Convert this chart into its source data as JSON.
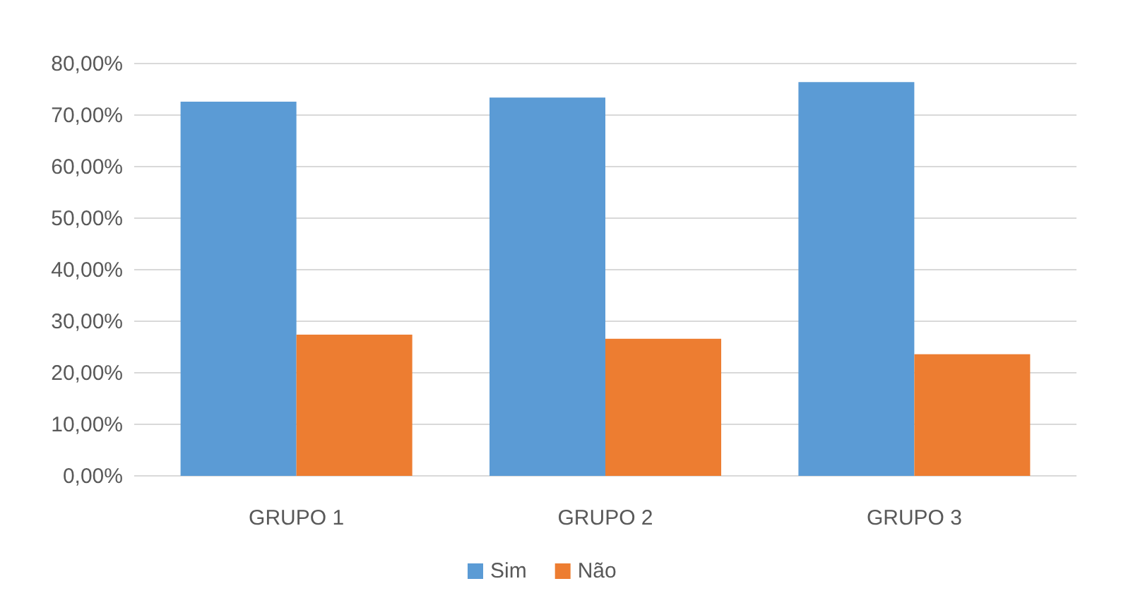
{
  "chart_data": {
    "type": "bar",
    "categories": [
      "GRUPO 1",
      "GRUPO 2",
      "GRUPO 3"
    ],
    "series": [
      {
        "name": "Sim",
        "color": "#5b9bd5",
        "values": [
          72.6,
          73.4,
          76.4
        ]
      },
      {
        "name": "Não",
        "color": "#ed7d31",
        "values": [
          27.4,
          26.6,
          23.6
        ]
      }
    ],
    "ylim": [
      0,
      80
    ],
    "yticks": [
      {
        "value": 0,
        "label": "0,00%"
      },
      {
        "value": 10,
        "label": "10,00%"
      },
      {
        "value": 20,
        "label": "20,00%"
      },
      {
        "value": 30,
        "label": "30,00%"
      },
      {
        "value": 40,
        "label": "40,00%"
      },
      {
        "value": 50,
        "label": "50,00%"
      },
      {
        "value": 60,
        "label": "60,00%"
      },
      {
        "value": 70,
        "label": "70,00%"
      },
      {
        "value": 80,
        "label": "80,00%"
      }
    ],
    "grid": "y",
    "legend": "bottom"
  }
}
